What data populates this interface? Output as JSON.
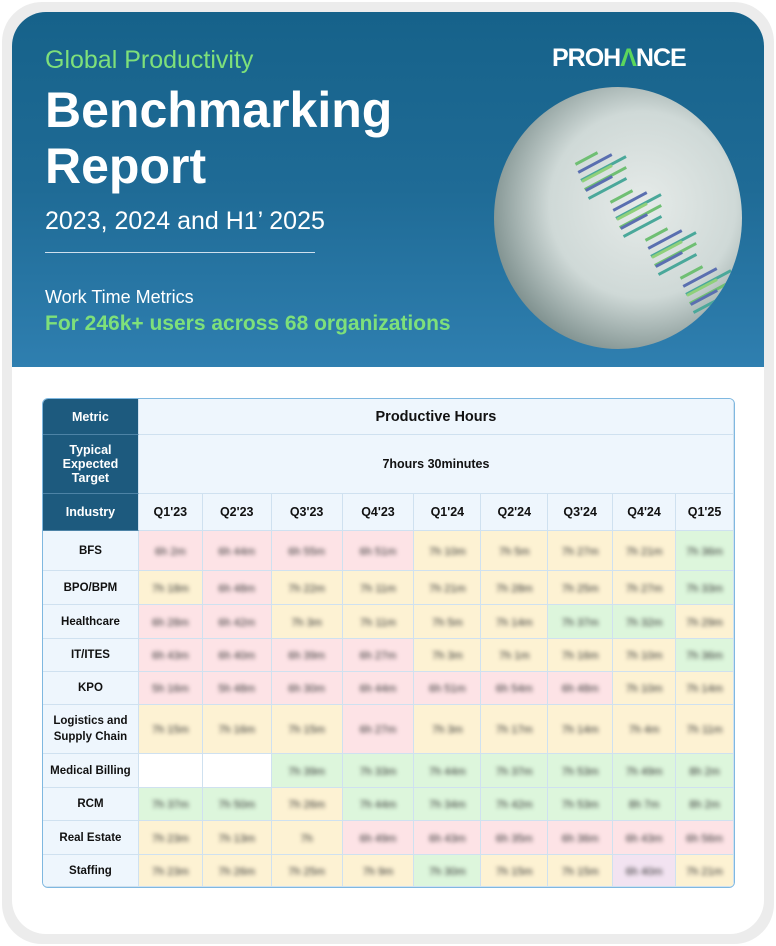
{
  "header": {
    "kicker": "Global Productivity",
    "title_line1": "Benchmarking",
    "title_line2": "Report",
    "years": "2023, 2024 and H1’ 2025",
    "subtitle": "Work Time Metrics",
    "users": "For 246k+ users across 68 organizations",
    "logo": {
      "a": "PROH",
      "b": "Λ",
      "c": "NCE"
    }
  },
  "table": {
    "metric_label": "Metric",
    "metric_value": "Productive Hours",
    "target_label": "Typical Expected Target",
    "target_value": "7hours 30minutes",
    "industry_label": "Industry",
    "quarters": [
      "Q1'23",
      "Q2'23",
      "Q3'23",
      "Q4'23",
      "Q1'24",
      "Q2'24",
      "Q3'24",
      "Q4'24",
      "Q1'25"
    ],
    "colors": {
      "P": "#fde3e6",
      "Y": "#fdf2d3",
      "G": "#ddf6dc",
      "W": "#ffffff",
      "V": "#f2e3f1"
    },
    "rows": [
      {
        "industry": "BFS",
        "status": [
          "P",
          "P",
          "P",
          "P",
          "Y",
          "Y",
          "Y",
          "Y",
          "G"
        ],
        "values": [
          "6h 2m",
          "6h 44m",
          "6h 55m",
          "6h 51m",
          "7h 10m",
          "7h 5m",
          "7h 27m",
          "7h 21m",
          "7h 36m"
        ]
      },
      {
        "industry": "BPO/BPM",
        "status": [
          "Y",
          "P",
          "Y",
          "Y",
          "Y",
          "Y",
          "Y",
          "Y",
          "G"
        ],
        "values": [
          "7h 18m",
          "6h 48m",
          "7h 22m",
          "7h 11m",
          "7h 21m",
          "7h 28m",
          "7h 25m",
          "7h 27m",
          "7h 33m"
        ]
      },
      {
        "industry": "Healthcare",
        "status": [
          "P",
          "P",
          "Y",
          "Y",
          "Y",
          "Y",
          "G",
          "G",
          "Y"
        ],
        "values": [
          "6h 28m",
          "6h 42m",
          "7h 3m",
          "7h 11m",
          "7h 5m",
          "7h 14m",
          "7h 37m",
          "7h 32m",
          "7h 29m"
        ]
      },
      {
        "industry": "IT/ITES",
        "status": [
          "P",
          "P",
          "P",
          "P",
          "Y",
          "Y",
          "Y",
          "Y",
          "G"
        ],
        "values": [
          "6h 43m",
          "6h 40m",
          "6h 39m",
          "6h 27m",
          "7h 3m",
          "7h 1m",
          "7h 16m",
          "7h 10m",
          "7h 36m"
        ]
      },
      {
        "industry": "KPO",
        "status": [
          "P",
          "P",
          "P",
          "P",
          "P",
          "P",
          "P",
          "Y",
          "Y"
        ],
        "values": [
          "5h 16m",
          "5h 48m",
          "6h 30m",
          "6h 44m",
          "6h 51m",
          "6h 54m",
          "6h 48m",
          "7h 10m",
          "7h 14m"
        ]
      },
      {
        "industry": "Logistics and Supply Chain",
        "status": [
          "Y",
          "Y",
          "Y",
          "P",
          "Y",
          "Y",
          "Y",
          "Y",
          "Y"
        ],
        "values": [
          "7h 15m",
          "7h 16m",
          "7h 15m",
          "6h 27m",
          "7h 3m",
          "7h 17m",
          "7h 14m",
          "7h 4m",
          "7h 11m"
        ]
      },
      {
        "industry": "Medical Billing",
        "status": [
          "W",
          "W",
          "G",
          "G",
          "G",
          "G",
          "G",
          "G",
          "G"
        ],
        "values": [
          "",
          "",
          "7h 39m",
          "7h 33m",
          "7h 44m",
          "7h 37m",
          "7h 53m",
          "7h 49m",
          "8h 2m"
        ]
      },
      {
        "industry": "RCM",
        "status": [
          "G",
          "G",
          "Y",
          "G",
          "G",
          "G",
          "G",
          "G",
          "G"
        ],
        "values": [
          "7h 37m",
          "7h 50m",
          "7h 26m",
          "7h 44m",
          "7h 34m",
          "7h 42m",
          "7h 53m",
          "8h 7m",
          "8h 2m"
        ]
      },
      {
        "industry": "Real Estate",
        "status": [
          "Y",
          "Y",
          "Y",
          "P",
          "P",
          "P",
          "P",
          "P",
          "P"
        ],
        "values": [
          "7h 23m",
          "7h 13m",
          "7h",
          "6h 49m",
          "6h 43m",
          "6h 35m",
          "6h 36m",
          "6h 43m",
          "6h 56m"
        ]
      },
      {
        "industry": "Staffing",
        "status": [
          "Y",
          "Y",
          "Y",
          "Y",
          "G",
          "Y",
          "Y",
          "V",
          "Y"
        ],
        "values": [
          "7h 23m",
          "7h 26m",
          "7h 25m",
          "7h 9m",
          "7h 30m",
          "7h 15m",
          "7h 15m",
          "6h 40m",
          "7h 21m"
        ]
      }
    ]
  }
}
